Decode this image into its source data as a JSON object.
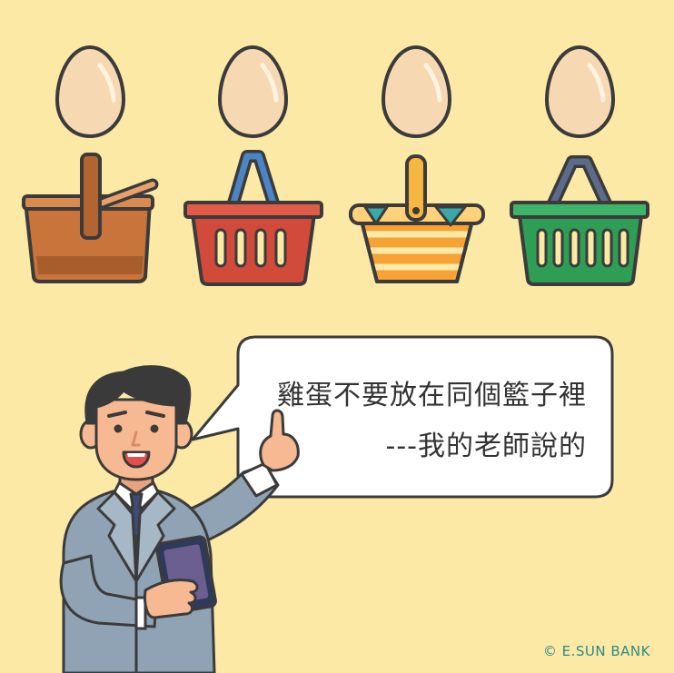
{
  "speech_bubble": {
    "line1": "雞蛋不要放在同個籃子裡",
    "line2": "---我的老師說的"
  },
  "copyright": "© E.SUN BANK",
  "colors": {
    "background": "#FCE9A5",
    "egg": "#F6D9B2",
    "outline": "#3B3B3B",
    "basket_brown": "#C8743A",
    "basket_red": "#D24A3A",
    "basket_orange": "#F7A234",
    "basket_green": "#2E9E55",
    "suit": "#8FA3B4",
    "copyright_text": "#2a8a86"
  },
  "icons": [
    "egg-icon",
    "brown-basket-icon",
    "red-basket-icon",
    "striped-basket-icon",
    "green-basket-icon",
    "businessman-illustration",
    "tablet-icon"
  ]
}
